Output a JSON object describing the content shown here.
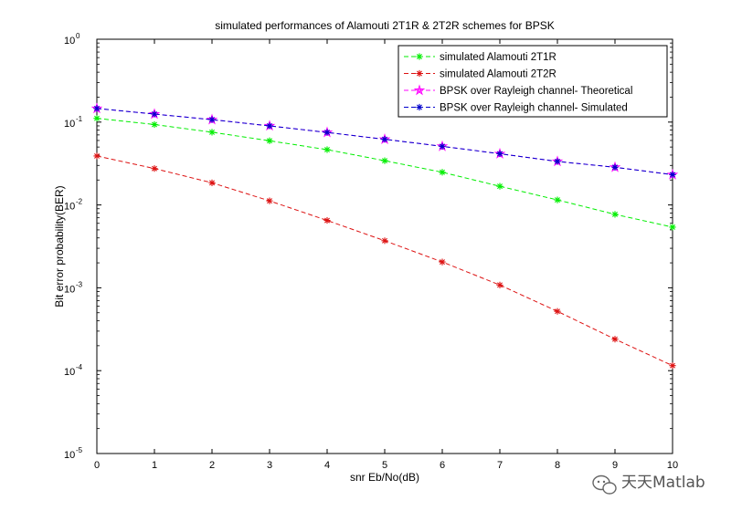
{
  "chart_data": {
    "type": "line",
    "title": "simulated performances of Alamouti 2T1R & 2T2R schemes for BPSK",
    "xlabel": "snr Eb/No(dB)",
    "ylabel": "Bit error probability(BER)",
    "xlim": [
      0,
      10
    ],
    "ylim": [
      1e-05,
      1
    ],
    "yscale": "log",
    "grid": false,
    "legend_position": "top-right",
    "x": [
      0,
      1,
      2,
      3,
      4,
      5,
      6,
      7,
      8,
      9,
      10
    ],
    "x_ticks": [
      {
        "label": "0",
        "value": 0
      },
      {
        "label": "1",
        "value": 1
      },
      {
        "label": "2",
        "value": 2
      },
      {
        "label": "3",
        "value": 3
      },
      {
        "label": "4",
        "value": 4
      },
      {
        "label": "5",
        "value": 5
      },
      {
        "label": "6",
        "value": 6
      },
      {
        "label": "7",
        "value": 7
      },
      {
        "label": "8",
        "value": 8
      },
      {
        "label": "9",
        "value": 9
      },
      {
        "label": "10",
        "value": 10
      }
    ],
    "y_ticks": [
      {
        "base": "10",
        "exp": "0",
        "value": 1
      },
      {
        "base": "10",
        "exp": "-1",
        "value": 0.1
      },
      {
        "base": "10",
        "exp": "-2",
        "value": 0.01
      },
      {
        "base": "10",
        "exp": "-3",
        "value": 0.001
      },
      {
        "base": "10",
        "exp": "-4",
        "value": 0.0001
      },
      {
        "base": "10",
        "exp": "-5",
        "value": 1e-05
      }
    ],
    "series": [
      {
        "name": "simulated Alamouti 2T1R",
        "color": "#00ee00",
        "marker": "*",
        "line": "dashed",
        "values": [
          0.111,
          0.0935,
          0.0755,
          0.0595,
          0.0465,
          0.0342,
          0.0248,
          0.0168,
          0.0115,
          0.0077,
          0.0054
        ]
      },
      {
        "name": "simulated Alamouti 2T2R",
        "color": "#dd1111",
        "marker": "*",
        "line": "dashed",
        "values": [
          0.039,
          0.0275,
          0.0185,
          0.0112,
          0.0065,
          0.0037,
          0.00205,
          0.00108,
          0.00052,
          0.00024,
          0.000115
        ]
      },
      {
        "name": "BPSK over Rayleigh channel- Theoretical",
        "color": "#ff00ff",
        "marker": "pentagram",
        "line": "dashed",
        "values": [
          0.146,
          0.125,
          0.107,
          0.09,
          0.075,
          0.062,
          0.051,
          0.0415,
          0.0335,
          0.0285,
          0.0232
        ]
      },
      {
        "name": "BPSK over Rayleigh channel- Simulated",
        "color": "#0000cc",
        "marker": "*",
        "line": "dashed",
        "values": [
          0.146,
          0.125,
          0.107,
          0.09,
          0.075,
          0.062,
          0.051,
          0.0415,
          0.0335,
          0.0285,
          0.0232
        ]
      }
    ]
  },
  "watermark": {
    "icon": "wechat-icon",
    "text": "天天Matlab"
  }
}
